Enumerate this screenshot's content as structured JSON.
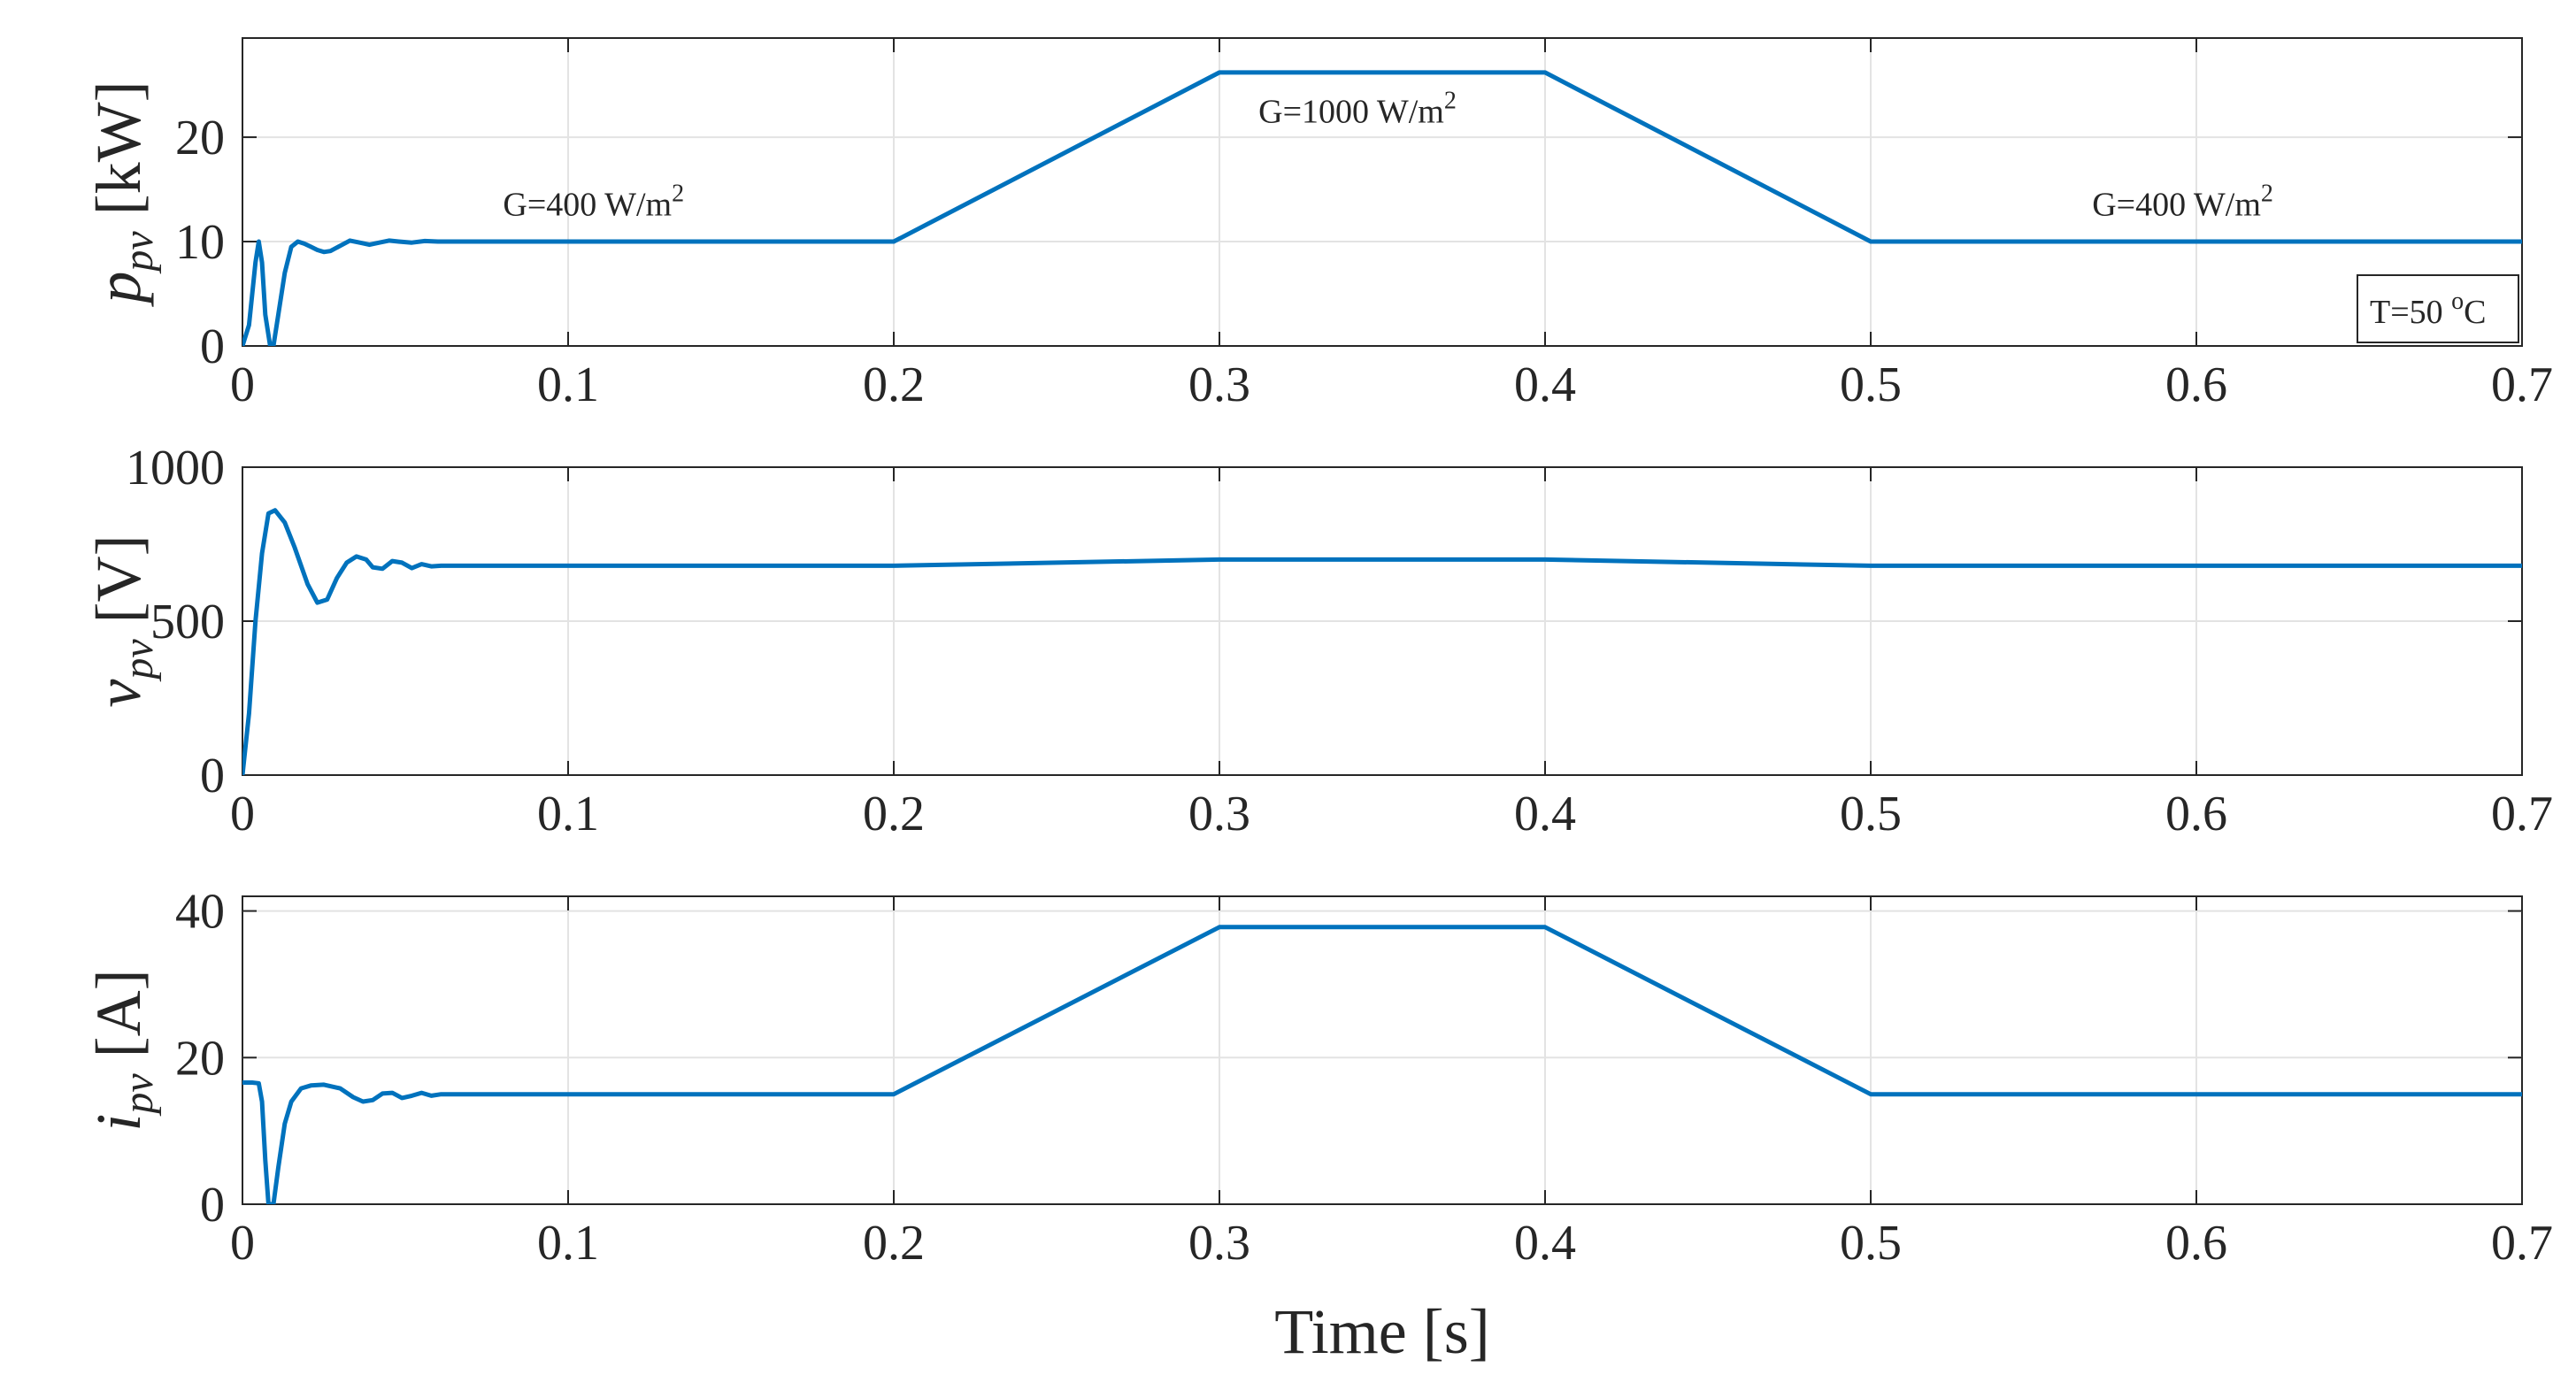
{
  "colors": {
    "series": "#0072BD",
    "axis": "#262626",
    "grid": "#e3e3e3"
  },
  "chart_data": [
    {
      "type": "line",
      "id": "power",
      "ylabel_var": "p",
      "ylabel_sub": "pv",
      "ylabel_unit": "[kW]",
      "xlabel": "",
      "xlim": [
        0,
        0.7
      ],
      "ylim": [
        0,
        29.5
      ],
      "xticks": [
        0,
        0.1,
        0.2,
        0.3,
        0.4,
        0.5,
        0.6,
        0.7
      ],
      "xtick_labels": [
        "0",
        "0.1",
        "0.2",
        "0.3",
        "0.4",
        "0.5",
        "0.6",
        "0.7"
      ],
      "yticks": [
        0,
        10,
        20
      ],
      "ytick_labels": [
        "0",
        "10",
        "20"
      ],
      "grid": true,
      "series": [
        {
          "name": "p_pv",
          "x": [
            0,
            0.002,
            0.004,
            0.005,
            0.006,
            0.007,
            0.0085,
            0.0095,
            0.011,
            0.013,
            0.015,
            0.017,
            0.019,
            0.021,
            0.023,
            0.025,
            0.027,
            0.03,
            0.033,
            0.036,
            0.039,
            0.042,
            0.045,
            0.048,
            0.052,
            0.056,
            0.06,
            0.065,
            0.07,
            0.2,
            0.3,
            0.4,
            0.5,
            0.7
          ],
          "y": [
            0,
            2,
            8,
            10,
            8,
            3,
            0,
            0,
            3,
            7,
            9.5,
            10,
            9.8,
            9.5,
            9.2,
            9.0,
            9.1,
            9.6,
            10.1,
            9.9,
            9.7,
            9.9,
            10.1,
            10.0,
            9.9,
            10.05,
            10.0,
            10.0,
            10.0,
            10.0,
            26.2,
            26.2,
            10.0,
            10.0
          ]
        }
      ],
      "annotations": [
        {
          "text_main": "G=400 W/m",
          "sup": "2",
          "x": 0.08,
          "y": 12.5
        },
        {
          "text_main": "G=1000 W/m",
          "sup": "2",
          "x": 0.312,
          "y": 21.4
        },
        {
          "text_main": "G=400 W/m",
          "sup": "2",
          "x": 0.568,
          "y": 12.5
        }
      ],
      "legend": {
        "text_main": "T=50 ",
        "sup": "o",
        "text_end": "C",
        "position": "bottom-right"
      }
    },
    {
      "type": "line",
      "id": "voltage",
      "ylabel_var": "v",
      "ylabel_sub": "pv",
      "ylabel_unit": "[V]",
      "xlabel": "",
      "xlim": [
        0,
        0.7
      ],
      "ylim": [
        0,
        1000
      ],
      "xticks": [
        0,
        0.1,
        0.2,
        0.3,
        0.4,
        0.5,
        0.6,
        0.7
      ],
      "xtick_labels": [
        "0",
        "0.1",
        "0.2",
        "0.3",
        "0.4",
        "0.5",
        "0.6",
        "0.7"
      ],
      "yticks": [
        0,
        500,
        1000
      ],
      "ytick_labels": [
        "0",
        "500",
        "1000"
      ],
      "grid": true,
      "series": [
        {
          "name": "v_pv",
          "x": [
            0,
            0.002,
            0.004,
            0.006,
            0.008,
            0.01,
            0.013,
            0.016,
            0.02,
            0.023,
            0.026,
            0.029,
            0.032,
            0.035,
            0.038,
            0.04,
            0.043,
            0.046,
            0.049,
            0.052,
            0.055,
            0.058,
            0.061,
            0.065,
            0.2,
            0.3,
            0.4,
            0.5,
            0.7
          ],
          "y": [
            0,
            200,
            500,
            720,
            850,
            860,
            820,
            740,
            620,
            560,
            570,
            640,
            690,
            710,
            700,
            675,
            670,
            695,
            690,
            672,
            685,
            678,
            680,
            680,
            680,
            700,
            700,
            680,
            680
          ]
        }
      ],
      "annotations": []
    },
    {
      "type": "line",
      "id": "current",
      "ylabel_var": "i",
      "ylabel_sub": "pv",
      "ylabel_unit": "[A]",
      "xlabel": "Time [s]",
      "xlim": [
        0,
        0.7
      ],
      "ylim": [
        0,
        42
      ],
      "xticks": [
        0,
        0.1,
        0.2,
        0.3,
        0.4,
        0.5,
        0.6,
        0.7
      ],
      "xtick_labels": [
        "0",
        "0.1",
        "0.2",
        "0.3",
        "0.4",
        "0.5",
        "0.6",
        "0.7"
      ],
      "yticks": [
        0,
        20,
        40
      ],
      "ytick_labels": [
        "0",
        "20",
        "40"
      ],
      "grid": true,
      "series": [
        {
          "name": "i_pv",
          "x": [
            0,
            0.003,
            0.005,
            0.006,
            0.007,
            0.008,
            0.0095,
            0.011,
            0.013,
            0.015,
            0.018,
            0.021,
            0.025,
            0.03,
            0.034,
            0.037,
            0.04,
            0.043,
            0.046,
            0.049,
            0.052,
            0.055,
            0.058,
            0.061,
            0.065,
            0.2,
            0.3,
            0.4,
            0.5,
            0.7
          ],
          "y": [
            16.6,
            16.6,
            16.5,
            14,
            6,
            0,
            0,
            5,
            11,
            14,
            15.8,
            16.2,
            16.3,
            15.8,
            14.6,
            14.0,
            14.2,
            15.1,
            15.2,
            14.5,
            14.8,
            15.2,
            14.8,
            15.0,
            15.0,
            15.0,
            37.8,
            37.8,
            15.0,
            15.0
          ]
        }
      ],
      "annotations": []
    }
  ]
}
